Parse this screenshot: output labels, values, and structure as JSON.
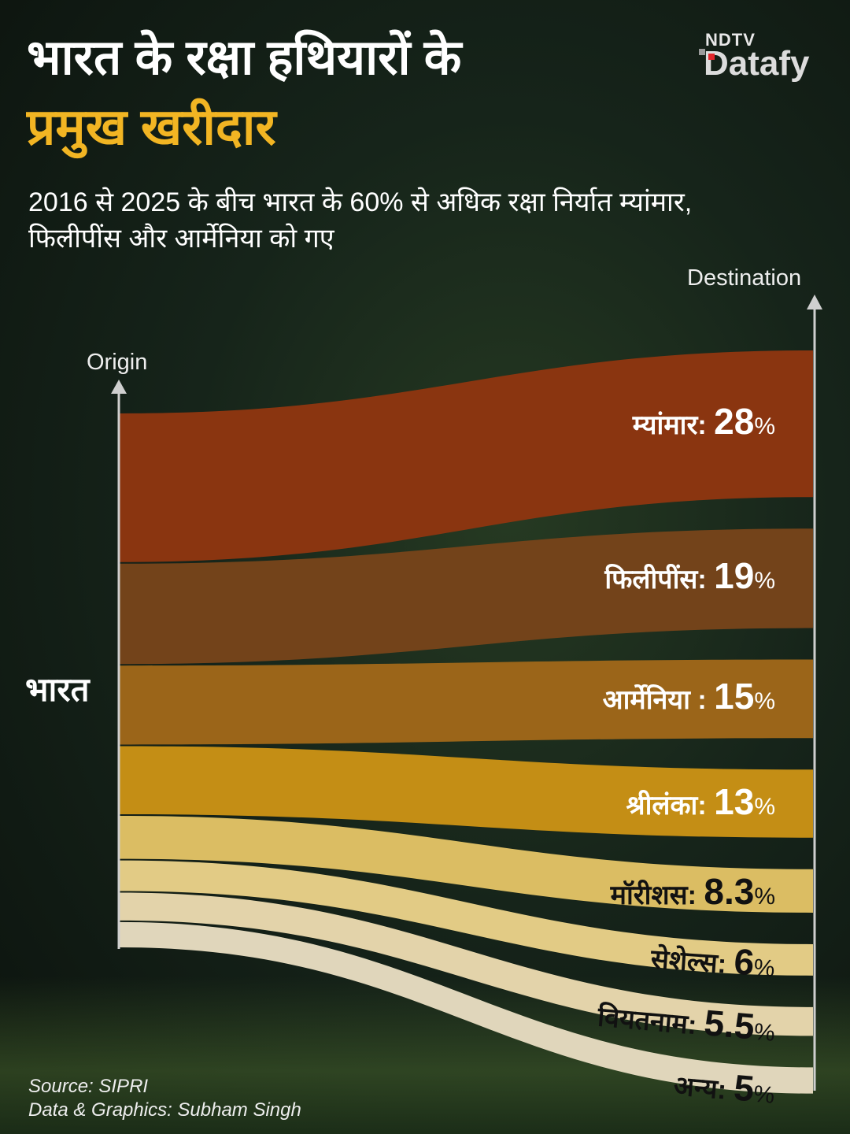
{
  "header": {
    "title_line1": "भारत के रक्षा हथियारों के",
    "title_line2": "प्रमुख खरीदार",
    "subtitle": "2016 से 2025 के बीच भारत के 60% से अधिक रक्षा निर्यात म्यांमार, फिलीपींस और आर्मेनिया को गए"
  },
  "logo": {
    "top": "NDTV",
    "bottom": "Datafy"
  },
  "chart_data": {
    "type": "sankey",
    "origin_axis_label": "Origin",
    "destination_axis_label": "Destination",
    "source_node": "भारत",
    "unit": "%",
    "flows": [
      {
        "name": "म्यांमार:",
        "value": 28,
        "value_label": "28",
        "color": "#8a3510"
      },
      {
        "name": "फिलीपींस:",
        "value": 19,
        "value_label": "19",
        "color": "#73431a"
      },
      {
        "name": "आर्मेनिया :",
        "value": 15,
        "value_label": "15",
        "color": "#9b6519"
      },
      {
        "name": "श्रीलंका:",
        "value": 13,
        "value_label": "13",
        "color": "#c48e15"
      },
      {
        "name": "मॉरीशस:",
        "value": 8.3,
        "value_label": "8.3",
        "color": "#dbbd63"
      },
      {
        "name": "सेशेल्स:",
        "value": 6,
        "value_label": "6",
        "color": "#e2cb85"
      },
      {
        "name": "वियतनाम:",
        "value": 5.5,
        "value_label": "5.5",
        "color": "#e3d3aa"
      },
      {
        "name": "अन्य:",
        "value": 5,
        "value_label": "5",
        "color": "#e0d6bb"
      }
    ]
  },
  "footer": {
    "source": "Source: SIPRI",
    "credit": "Data & Graphics: Subham Singh"
  }
}
